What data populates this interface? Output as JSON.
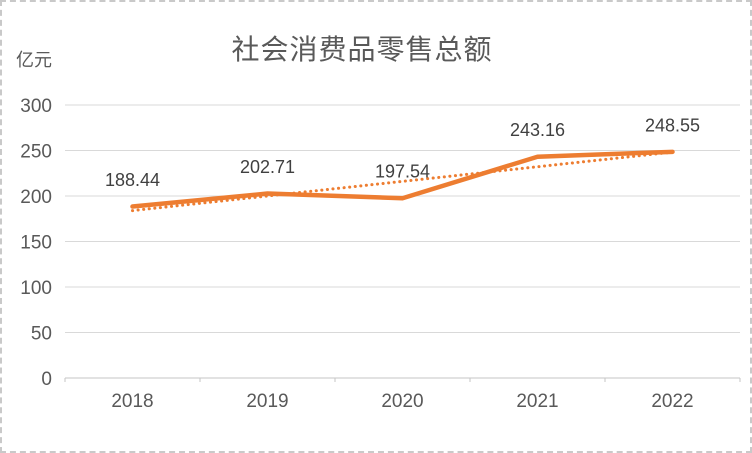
{
  "chart": {
    "title": "社会消费品零售总额",
    "unit_label": "亿元"
  },
  "chart_data": {
    "type": "line",
    "title": "社会消费品零售总额",
    "unit": "亿元",
    "categories": [
      "2018",
      "2019",
      "2020",
      "2021",
      "2022"
    ],
    "series": [
      {
        "name": "社会消费品零售总额",
        "values": [
          188.44,
          202.71,
          197.54,
          243.16,
          248.55
        ],
        "color": "#ED7D31",
        "style": "solid"
      }
    ],
    "data_labels": [
      "188.44",
      "202.71",
      "197.54",
      "243.16",
      "248.55"
    ],
    "trendline": {
      "type": "linear",
      "start_value": 183.95,
      "end_value": 248.22,
      "color": "#ED7D31",
      "style": "dotted"
    },
    "xlabel": "",
    "ylabel": "亿元",
    "ylim": [
      0,
      300
    ],
    "ytick_step": 50,
    "yticks": [
      0,
      50,
      100,
      150,
      200,
      250,
      300
    ],
    "grid": true,
    "legend": "none",
    "colors": {
      "series": "#ED7D31",
      "gridline": "#D9D9D9",
      "axis_line": "#C6C6C6",
      "axis_text": "#595959",
      "data_label": "#404040",
      "title_text": "#595959"
    }
  }
}
